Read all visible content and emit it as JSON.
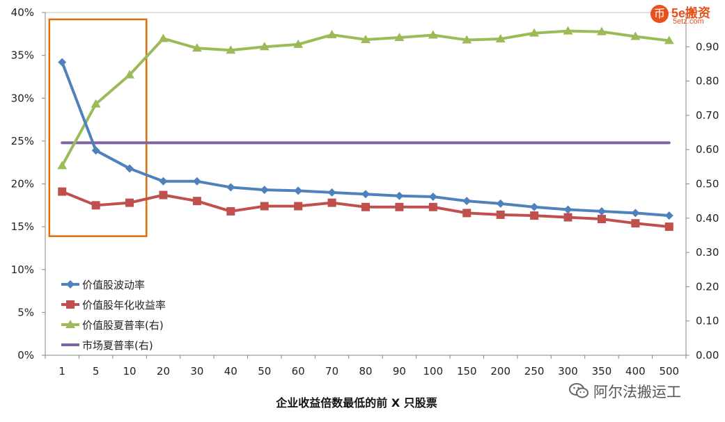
{
  "chart_data": {
    "type": "line",
    "xlabel": "企业收益倍数最低的前 X 只股票",
    "categories": [
      "1",
      "5",
      "10",
      "20",
      "30",
      "40",
      "50",
      "60",
      "70",
      "80",
      "90",
      "100",
      "150",
      "200",
      "250",
      "300",
      "350",
      "400",
      "500"
    ],
    "y_left": {
      "ticks": [
        "0%",
        "5%",
        "10%",
        "15%",
        "20%",
        "25%",
        "30%",
        "35%",
        "40%"
      ],
      "ylim": [
        0,
        40
      ]
    },
    "y_right": {
      "ticks": [
        "0.00",
        "0.10",
        "0.20",
        "0.30",
        "0.40",
        "0.50",
        "0.60",
        "0.70",
        "0.80",
        "0.90"
      ],
      "ylim": [
        0,
        1.0
      ]
    },
    "series": [
      {
        "name": "价值股波动率",
        "axis": "left",
        "color": "#4f81bd",
        "marker": "diamond",
        "values": [
          34.2,
          23.9,
          21.8,
          20.3,
          20.3,
          19.6,
          19.3,
          19.2,
          19.0,
          18.8,
          18.6,
          18.5,
          18.0,
          17.7,
          17.3,
          17.0,
          16.8,
          16.6,
          16.3
        ]
      },
      {
        "name": "价值股年化收益率",
        "axis": "left",
        "color": "#c0504d",
        "marker": "square",
        "values": [
          19.1,
          17.5,
          17.8,
          18.7,
          18.0,
          16.8,
          17.4,
          17.4,
          17.8,
          17.3,
          17.3,
          17.3,
          16.6,
          16.4,
          16.3,
          16.1,
          15.9,
          15.4,
          15.0
        ]
      },
      {
        "name": "价值股夏普率(右)",
        "axis": "right",
        "color": "#9bbb59",
        "marker": "triangle",
        "values": [
          0.553,
          0.733,
          0.818,
          0.924,
          0.896,
          0.89,
          0.9,
          0.907,
          0.935,
          0.921,
          0.927,
          0.934,
          0.92,
          0.923,
          0.94,
          0.946,
          0.944,
          0.93,
          0.918
        ]
      },
      {
        "name": "市场夏普率(右)",
        "axis": "right",
        "color": "#8064a2",
        "marker": "none",
        "values": [
          0.62,
          0.62,
          0.62,
          0.62,
          0.62,
          0.62,
          0.62,
          0.62,
          0.62,
          0.62,
          0.62,
          0.62,
          0.62,
          0.62,
          0.62,
          0.62,
          0.62,
          0.62,
          0.62
        ]
      }
    ],
    "highlight": {
      "from_category": "1",
      "to_category": "10",
      "color": "#e36c09"
    },
    "legend_position": "bottom-left"
  },
  "logo": {
    "main": "5e搬资",
    "sub": "5etz.com",
    "symbol": "币"
  },
  "watermark": {
    "text": "阿尔法搬运工",
    "icon": "wechat-icon"
  }
}
